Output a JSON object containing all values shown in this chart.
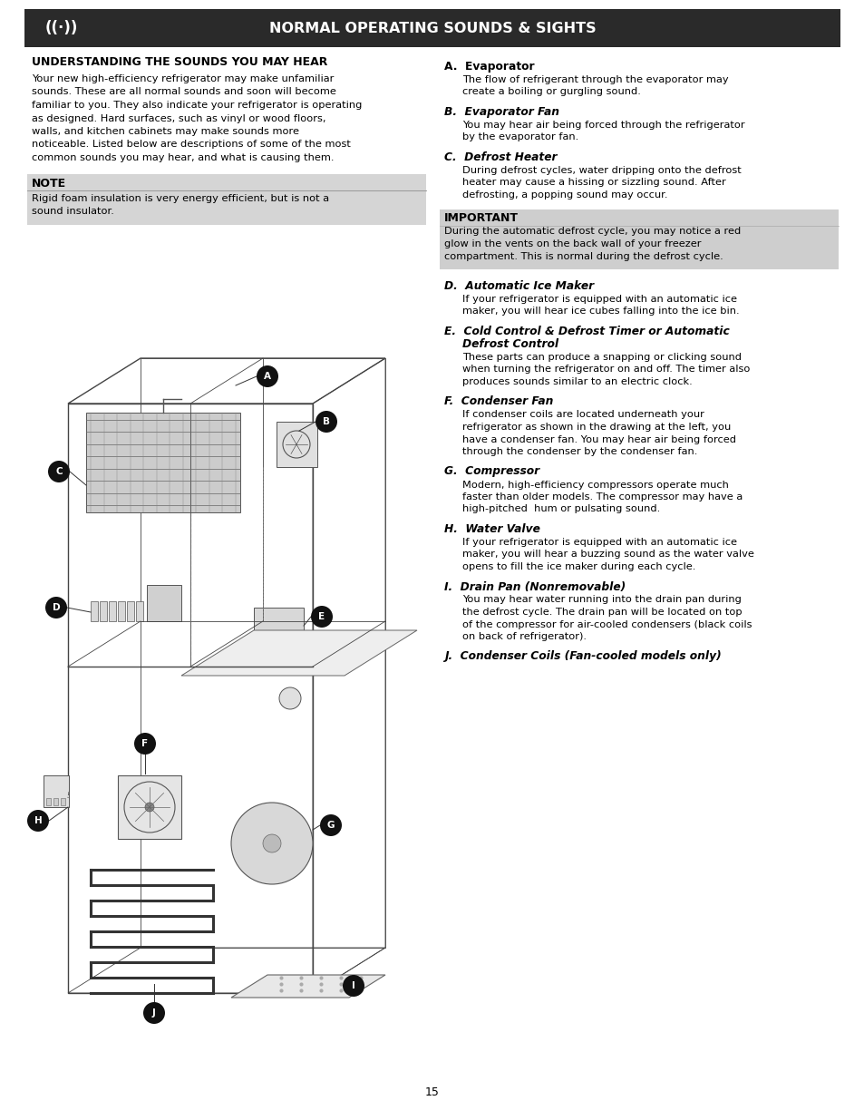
{
  "page_bg": "#ffffff",
  "header_bg": "#2a2a2a",
  "header_text": "NORMAL OPERATING SOUNDS & SIGHTS",
  "header_text_color": "#ffffff",
  "note_label": "NOTE",
  "note_bg": "#d5d5d5",
  "note_text": "Rigid foam insulation is very energy efficient, but is not a\nsound insulator.",
  "important_label": "IMPORTANT",
  "important_bg": "#cecece",
  "important_text": "During the automatic defrost cycle, you may notice a red\nglow in the vents on the back wall of your freezer\ncompartment. This is normal during the defrost cycle.",
  "left_title": "UNDERSTANDING THE SOUNDS YOU MAY HEAR",
  "left_intro_lines": [
    "Your new high-efficiency refrigerator may make unfamiliar",
    "sounds. These are all normal sounds and soon will become",
    "familiar to you. They also indicate your refrigerator is operating",
    "as designed. Hard surfaces, such as vinyl or wood floors,",
    "walls, and kitchen cabinets may make sounds more",
    "noticeable. Listed below are descriptions of some of the most",
    "common sounds you may hear, and what is causing them."
  ],
  "right_sections": [
    {
      "label": "A.",
      "title": "Evaporator",
      "italic": false,
      "body": [
        "The flow of refrigerant through the evaporator may",
        "create a boiling or gurgling sound."
      ]
    },
    {
      "label": "B.",
      "title": "Evaporator Fan",
      "italic": true,
      "body": [
        "You may hear air being forced through the refrigerator",
        "by the evaporator fan."
      ]
    },
    {
      "label": "C.",
      "title": "Defrost Heater",
      "italic": true,
      "body": [
        "During defrost cycles, water dripping onto the defrost",
        "heater may cause a hissing or sizzling sound. After",
        "defrosting, a popping sound may occur."
      ]
    },
    {
      "label": "D.",
      "title": "Automatic Ice Maker",
      "italic": true,
      "body": [
        "If your refrigerator is equipped with an automatic ice",
        "maker, you will hear ice cubes falling into the ice bin."
      ]
    },
    {
      "label": "E.",
      "title": "Cold Control & Defrost Timer or Automatic",
      "title2": "Defrost Control",
      "italic": true,
      "body": [
        "These parts can produce a snapping or clicking sound",
        "when turning the refrigerator on and off. The timer also",
        "produces sounds similar to an electric clock."
      ]
    },
    {
      "label": "F.",
      "title": "Condenser Fan",
      "italic": true,
      "body": [
        "If condenser coils are located underneath your",
        "refrigerator as shown in the drawing at the left, you",
        "have a condenser fan. You may hear air being forced",
        "through the condenser by the condenser fan."
      ]
    },
    {
      "label": "G.",
      "title": "Compressor",
      "italic": true,
      "body": [
        "Modern, high-efficiency compressors operate much",
        "faster than older models. The compressor may have a",
        "high-pitched  hum or pulsating sound."
      ]
    },
    {
      "label": "H.",
      "title": "Water Valve",
      "italic": true,
      "body": [
        "If your refrigerator is equipped with an automatic ice",
        "maker, you will hear a buzzing sound as the water valve",
        "opens to fill the ice maker during each cycle."
      ]
    },
    {
      "label": "I.",
      "title": "Drain Pan (Nonremovable)",
      "italic": true,
      "body": [
        "You may hear water running into the drain pan during",
        "the defrost cycle. The drain pan will be located on top",
        "of the compressor for air-cooled condensers (black coils",
        "on back of refrigerator)."
      ]
    },
    {
      "label": "J.",
      "title": "Condenser Coils (Fan-cooled models only)",
      "italic": true,
      "body": []
    }
  ],
  "page_number": "15"
}
